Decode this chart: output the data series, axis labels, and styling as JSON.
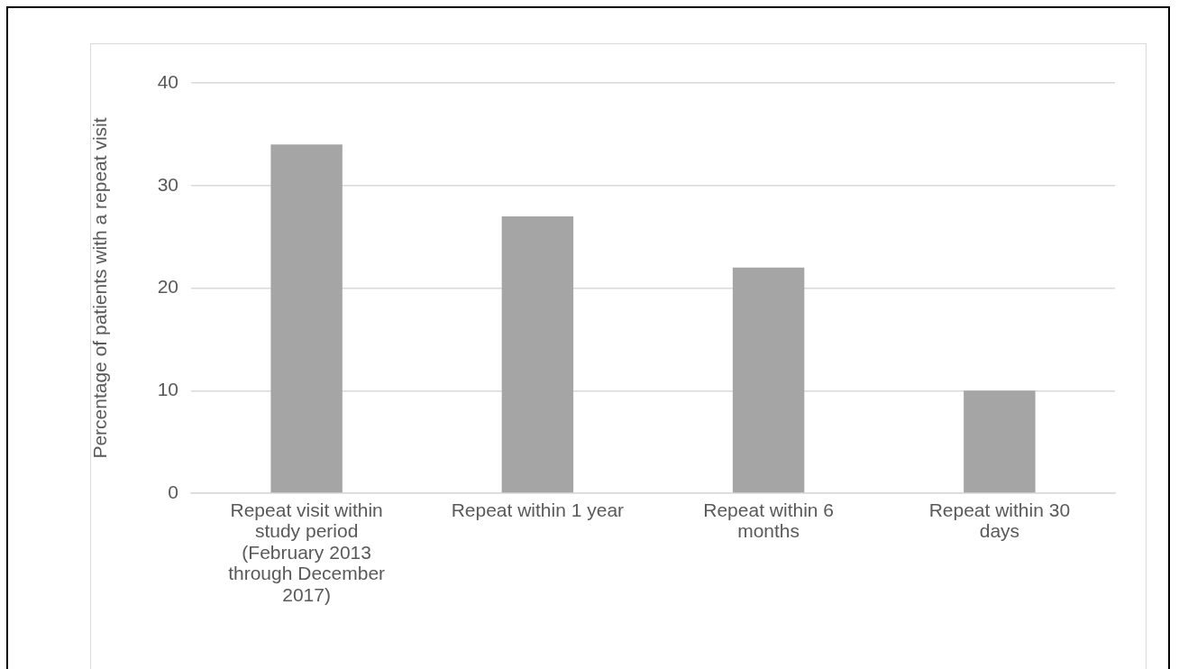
{
  "chart_data": {
    "type": "bar",
    "ylabel": "Percentage of patients with a repeat visit",
    "categories": [
      "Repeat visit within study period (February 2013 through December 2017)",
      "Repeat within 1 year",
      "Repeat within 6 months",
      "Repeat within 30 days"
    ],
    "values": [
      34,
      27,
      22,
      10
    ],
    "color": "#a5a5a5",
    "ylim": [
      0,
      40
    ],
    "yticks": [
      0,
      10,
      20,
      30,
      40
    ],
    "grid": "y",
    "legend": false
  }
}
